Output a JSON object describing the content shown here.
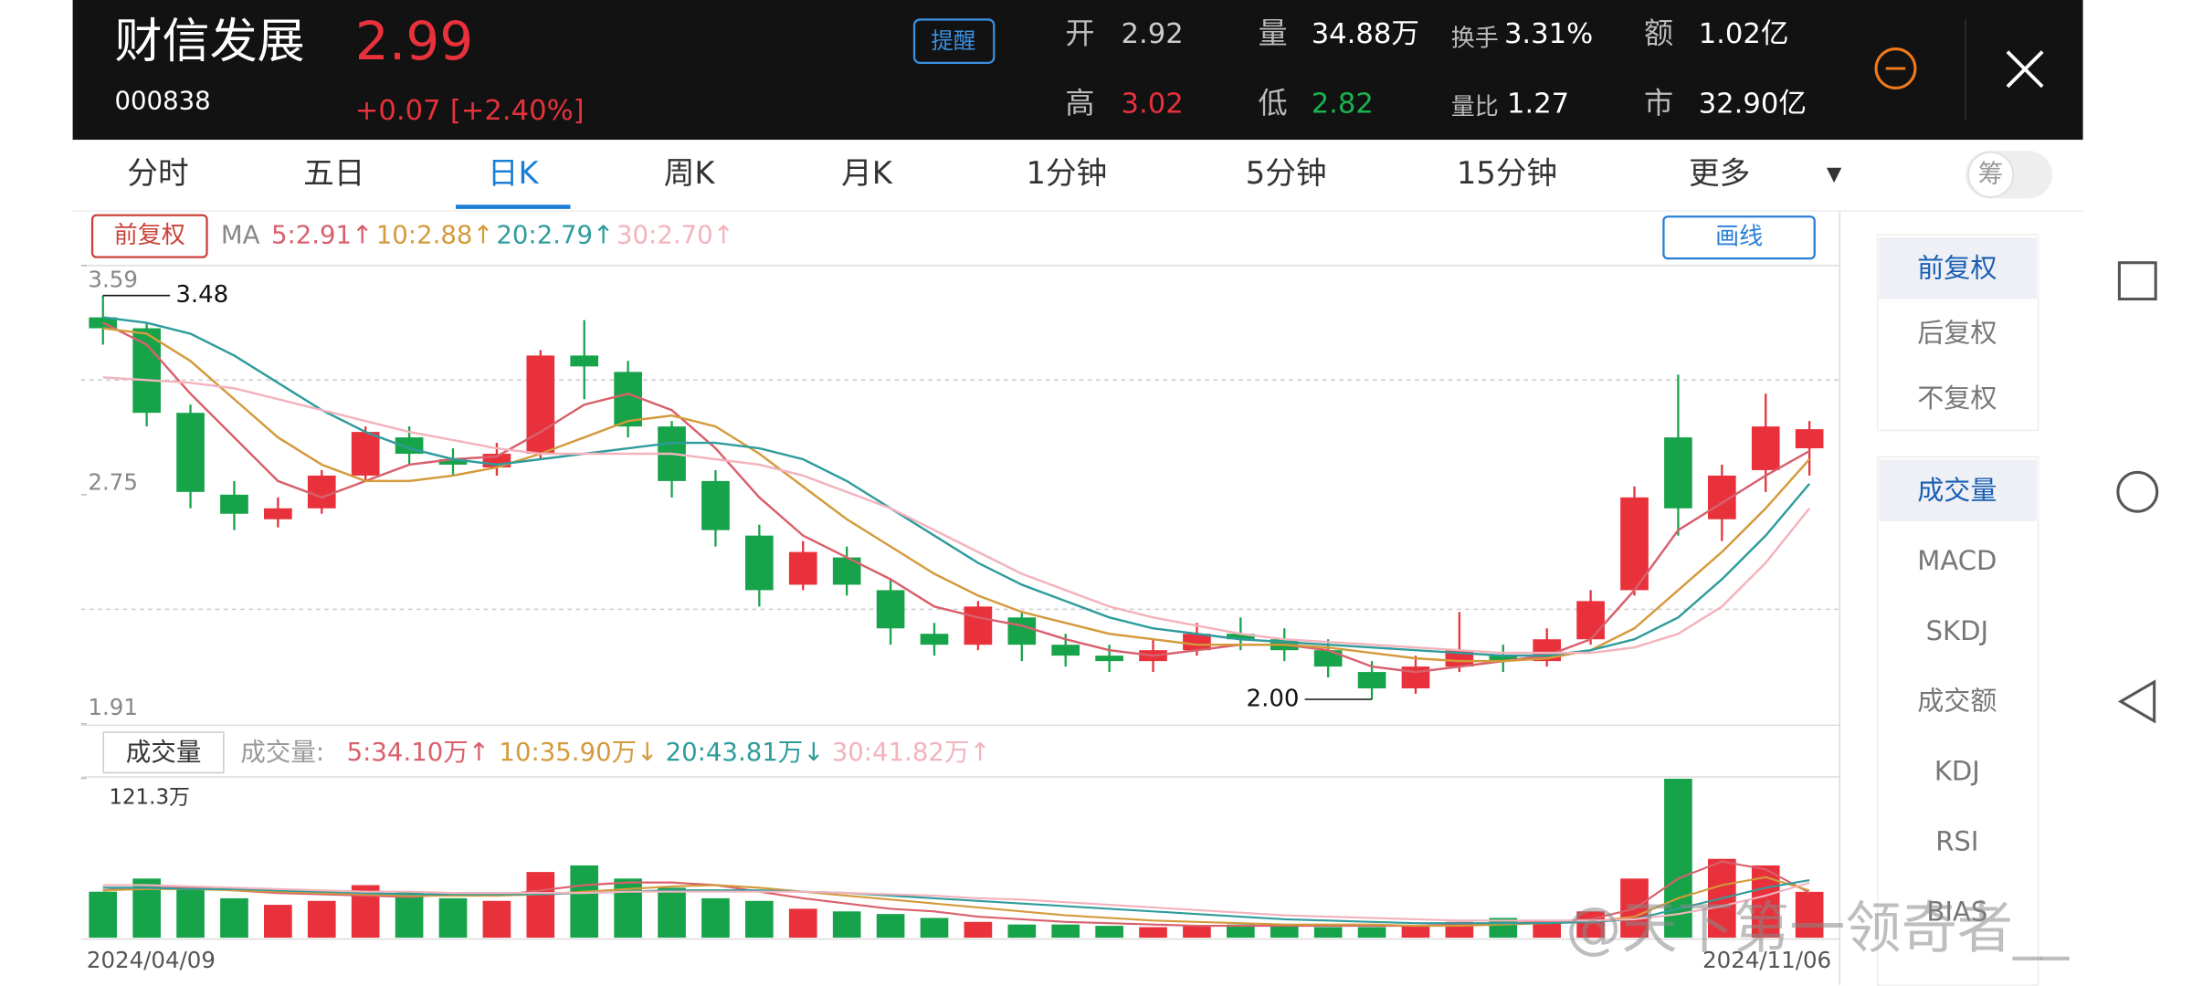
{
  "header": {
    "name": "财信发展",
    "price": "2.99",
    "code": "000838",
    "change": "+0.07",
    "change_pct": "[+2.40%]",
    "alert": "提醒",
    "stats": [
      {
        "label": "开",
        "value": "2.92"
      },
      {
        "label": "量",
        "value": "34.88万"
      },
      {
        "label": "换手",
        "value": "3.31%"
      },
      {
        "label": "额",
        "value": "1.02亿"
      },
      {
        "label": "高",
        "value": "3.02"
      },
      {
        "label": "低",
        "value": "2.82"
      },
      {
        "label": "量比",
        "value": "1.27"
      },
      {
        "label": "市",
        "value": "32.90亿"
      }
    ]
  },
  "tabs": [
    "分时",
    "五日",
    "日K",
    "周K",
    "月K",
    "1分钟",
    "5分钟",
    "15分钟",
    "更多"
  ],
  "toggle": "筹",
  "sidebar": {
    "adjust": [
      "前复权",
      "后复权",
      "不复权"
    ],
    "indicators": [
      "成交量",
      "MACD",
      "SKDJ",
      "成交额",
      "KDJ",
      "RSI",
      "BIAS"
    ]
  },
  "watermark": "@天下第一领奇者__",
  "chart_data": [
    {
      "type": "candlestick",
      "adjust_button": "前复权",
      "indicator": "MA",
      "draw_button": "画线",
      "up_color": "#e8313b",
      "down_color": "#17a34a",
      "open": [
        3.4,
        3.36,
        3.05,
        2.75,
        2.66,
        2.7,
        2.82,
        2.96,
        2.88,
        2.85,
        2.9,
        3.26,
        3.2,
        3.0,
        2.8,
        2.6,
        2.42,
        2.52,
        2.4,
        2.24,
        2.2,
        2.3,
        2.2,
        2.16,
        2.14,
        2.18,
        2.24,
        2.22,
        2.18,
        2.1,
        2.04,
        2.12,
        2.16,
        2.14,
        2.22,
        2.4,
        2.96,
        2.66,
        2.84,
        2.92
      ],
      "high": [
        3.48,
        3.38,
        3.08,
        2.8,
        2.74,
        2.84,
        3.0,
        3.0,
        2.92,
        2.94,
        3.28,
        3.39,
        3.24,
        3.02,
        2.84,
        2.64,
        2.58,
        2.56,
        2.44,
        2.28,
        2.36,
        2.32,
        2.24,
        2.2,
        2.22,
        2.28,
        2.3,
        2.26,
        2.22,
        2.14,
        2.16,
        2.32,
        2.2,
        2.26,
        2.4,
        2.78,
        3.19,
        2.86,
        3.12,
        3.02
      ],
      "low": [
        3.3,
        3.0,
        2.7,
        2.62,
        2.63,
        2.68,
        2.8,
        2.86,
        2.82,
        2.82,
        2.88,
        3.1,
        2.96,
        2.74,
        2.56,
        2.34,
        2.4,
        2.38,
        2.2,
        2.16,
        2.18,
        2.14,
        2.12,
        2.1,
        2.1,
        2.16,
        2.18,
        2.14,
        2.08,
        2.0,
        2.02,
        2.1,
        2.1,
        2.12,
        2.2,
        2.38,
        2.6,
        2.58,
        2.76,
        2.82
      ],
      "close": [
        3.36,
        3.05,
        2.76,
        2.68,
        2.7,
        2.82,
        2.98,
        2.9,
        2.86,
        2.9,
        3.26,
        3.22,
        3.0,
        2.8,
        2.62,
        2.4,
        2.54,
        2.42,
        2.26,
        2.2,
        2.34,
        2.2,
        2.16,
        2.14,
        2.18,
        2.24,
        2.22,
        2.18,
        2.12,
        2.04,
        2.12,
        2.18,
        2.14,
        2.22,
        2.36,
        2.74,
        2.7,
        2.82,
        3.0,
        2.99
      ],
      "ylim": [
        1.91,
        3.59
      ],
      "yticks": [
        3.59,
        2.75,
        1.91
      ],
      "grid_values": [
        3.17,
        2.33
      ],
      "high_label": 3.48,
      "low_label": {
        "value": 2.0,
        "label": "2.00"
      },
      "series": [
        {
          "legend": "5:2.91↑",
          "color": "#d8606c",
          "values": [
            3.38,
            3.3,
            3.12,
            2.96,
            2.8,
            2.74,
            2.8,
            2.86,
            2.88,
            2.89,
            2.98,
            3.08,
            3.12,
            3.06,
            2.92,
            2.74,
            2.6,
            2.52,
            2.44,
            2.34,
            2.3,
            2.27,
            2.22,
            2.18,
            2.16,
            2.18,
            2.2,
            2.2,
            2.18,
            2.12,
            2.1,
            2.12,
            2.14,
            2.16,
            2.22,
            2.4,
            2.62,
            2.72,
            2.82,
            2.91
          ]
        },
        {
          "legend": "10:2.88↑",
          "color": "#d49a3c",
          "values": [
            3.36,
            3.34,
            3.24,
            3.1,
            2.96,
            2.86,
            2.8,
            2.8,
            2.82,
            2.85,
            2.9,
            2.96,
            3.02,
            3.04,
            3.0,
            2.9,
            2.78,
            2.66,
            2.56,
            2.46,
            2.38,
            2.32,
            2.28,
            2.24,
            2.22,
            2.2,
            2.2,
            2.2,
            2.19,
            2.17,
            2.15,
            2.14,
            2.14,
            2.15,
            2.18,
            2.26,
            2.4,
            2.54,
            2.7,
            2.88
          ]
        },
        {
          "legend": "20:2.79↑",
          "color": "#2f9c9c",
          "values": [
            3.4,
            3.38,
            3.34,
            3.26,
            3.16,
            3.06,
            2.98,
            2.92,
            2.88,
            2.86,
            2.88,
            2.9,
            2.92,
            2.94,
            2.94,
            2.92,
            2.88,
            2.8,
            2.7,
            2.6,
            2.5,
            2.42,
            2.36,
            2.3,
            2.26,
            2.24,
            2.22,
            2.21,
            2.2,
            2.19,
            2.18,
            2.17,
            2.16,
            2.16,
            2.18,
            2.22,
            2.3,
            2.44,
            2.6,
            2.79
          ]
        },
        {
          "legend": "30:2.70↑",
          "color": "#f2b3bd",
          "values": [
            3.18,
            3.17,
            3.16,
            3.14,
            3.1,
            3.06,
            3.02,
            2.98,
            2.95,
            2.92,
            2.9,
            2.9,
            2.9,
            2.9,
            2.88,
            2.86,
            2.82,
            2.76,
            2.7,
            2.62,
            2.54,
            2.46,
            2.4,
            2.34,
            2.3,
            2.27,
            2.24,
            2.22,
            2.21,
            2.2,
            2.19,
            2.18,
            2.17,
            2.17,
            2.17,
            2.19,
            2.24,
            2.34,
            2.5,
            2.7
          ]
        }
      ]
    },
    {
      "type": "bar",
      "title": "成交量",
      "prefix": "成交量:",
      "values": [
        35,
        45,
        38,
        30,
        25,
        28,
        40,
        35,
        30,
        28,
        50,
        55,
        45,
        38,
        30,
        28,
        22,
        20,
        18,
        15,
        12,
        10,
        10,
        9,
        8,
        9,
        10,
        9,
        8,
        8,
        9,
        12,
        15,
        12,
        20,
        45,
        121,
        60,
        55,
        34.88
      ],
      "ylim": [
        0,
        121.3
      ],
      "yticks": [
        {
          "value": 121.3,
          "label": "121.3万"
        }
      ],
      "x_labels": [
        "2024/04/09",
        "2024/11/06"
      ],
      "series": [
        {
          "legend": "5:34.10万↑",
          "color": "#d8606c",
          "values": [
            36,
            38,
            38,
            36,
            34,
            33,
            32,
            31,
            33,
            32,
            36,
            40,
            42,
            42,
            40,
            35,
            30,
            26,
            22,
            20,
            16,
            14,
            12,
            11,
            10,
            9,
            9,
            9,
            9,
            9,
            9,
            10,
            11,
            12,
            14,
            22,
            45,
            58,
            52,
            34.1
          ]
        },
        {
          "legend": "10:35.90万↓",
          "color": "#d49a3c",
          "values": [
            36,
            37,
            37,
            36,
            35,
            34,
            33,
            32,
            32,
            32,
            33,
            35,
            37,
            39,
            40,
            38,
            35,
            32,
            29,
            26,
            23,
            20,
            17,
            15,
            13,
            12,
            11,
            10,
            10,
            10,
            9,
            9,
            10,
            11,
            12,
            16,
            30,
            40,
            46,
            35.9
          ]
        },
        {
          "legend": "20:43.81万↓",
          "color": "#2f9c9c",
          "values": [
            38,
            38,
            37,
            37,
            36,
            35,
            34,
            33,
            33,
            33,
            33,
            34,
            35,
            36,
            36,
            36,
            35,
            34,
            32,
            30,
            28,
            26,
            24,
            22,
            20,
            18,
            16,
            14,
            13,
            12,
            11,
            11,
            11,
            11,
            12,
            14,
            22,
            30,
            38,
            43.81
          ]
        },
        {
          "legend": "30:41.82万↑",
          "color": "#f2b3bd",
          "values": [
            40,
            40,
            39,
            38,
            37,
            36,
            35,
            35,
            34,
            34,
            34,
            34,
            35,
            35,
            35,
            35,
            35,
            34,
            33,
            32,
            30,
            29,
            27,
            25,
            23,
            21,
            19,
            17,
            16,
            15,
            14,
            13,
            13,
            13,
            13,
            14,
            18,
            24,
            32,
            41.82
          ]
        }
      ]
    }
  ]
}
